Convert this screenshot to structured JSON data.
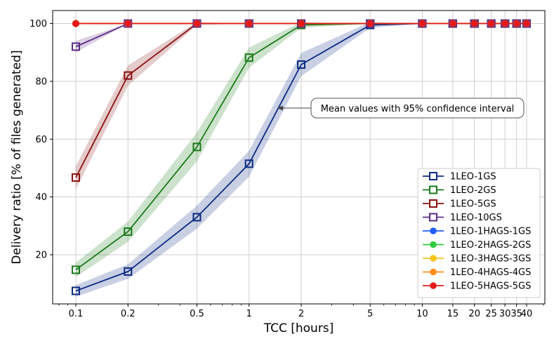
{
  "chart_data": {
    "type": "line",
    "xscale": "log",
    "xlabel": "TCC [hours]",
    "ylabel": "Delivery ratio [% of files generated]",
    "xlim": [
      0.0735,
      51
    ],
    "ylim": [
      3,
      104.5
    ],
    "x_ticks": [
      0.1,
      0.2,
      0.5,
      1,
      2,
      5,
      10,
      15,
      20,
      25,
      30,
      35,
      40
    ],
    "x_tick_labels": [
      "0.1",
      "0.2",
      "0.5",
      "1",
      "2",
      "5",
      "10",
      "15",
      "20",
      "25",
      "30",
      "35",
      "40"
    ],
    "y_ticks": [
      20,
      40,
      60,
      80,
      100
    ],
    "y_tick_labels": [
      "20",
      "40",
      "60",
      "80",
      "100"
    ],
    "grid": true,
    "legend_position": "lower-right",
    "annotation": "Mean values with 95% confidence interval",
    "series": [
      {
        "name": "1LEO-1GS",
        "color": "#0b2a82",
        "marker": "square-open",
        "x": [
          0.1,
          0.2,
          0.5,
          1,
          2,
          5,
          10,
          15,
          20,
          25,
          30,
          35,
          40
        ],
        "y": [
          7.5,
          14.2,
          33,
          51.5,
          85.8,
          99.5,
          100,
          100,
          100,
          100,
          100,
          100,
          100
        ],
        "ci": [
          2,
          2.5,
          4,
          4.5,
          4,
          1,
          0,
          0,
          0,
          0,
          0,
          0,
          0
        ]
      },
      {
        "name": "1LEO-2GS",
        "color": "#1a7a1a",
        "marker": "square-open",
        "x": [
          0.1,
          0.2,
          0.5,
          1,
          2,
          5,
          10,
          15,
          20,
          25,
          30,
          35,
          40
        ],
        "y": [
          14.8,
          28,
          57.3,
          88.2,
          99.5,
          100,
          100,
          100,
          100,
          100,
          100,
          100,
          100
        ],
        "ci": [
          2.5,
          3.5,
          5,
          3.5,
          1,
          0,
          0,
          0,
          0,
          0,
          0,
          0,
          0
        ]
      },
      {
        "name": "1LEO-5GS",
        "color": "#8a1010",
        "marker": "square-open",
        "x": [
          0.1,
          0.2,
          0.5,
          1,
          2,
          5,
          10,
          15,
          20,
          25,
          30,
          35,
          40
        ],
        "y": [
          46.7,
          82,
          100,
          100,
          100,
          100,
          100,
          100,
          100,
          100,
          100,
          100,
          100
        ],
        "ci": [
          4,
          3.5,
          0.5,
          0,
          0,
          0,
          0,
          0,
          0,
          0,
          0,
          0,
          0
        ]
      },
      {
        "name": "1LEO-10GS",
        "color": "#5b2a86",
        "marker": "square-open",
        "x": [
          0.1,
          0.2,
          0.5,
          1,
          2,
          5,
          10,
          15,
          20,
          25,
          30,
          35,
          40
        ],
        "y": [
          92,
          100,
          100,
          100,
          100,
          100,
          100,
          100,
          100,
          100,
          100,
          100,
          100
        ],
        "ci": [
          2,
          0,
          0,
          0,
          0,
          0,
          0,
          0,
          0,
          0,
          0,
          0,
          0
        ]
      },
      {
        "name": "1LEO-1HAGS-1GS",
        "color": "#1f5fff",
        "marker": "circle-filled",
        "x": [
          0.1,
          0.2,
          0.5,
          1,
          2,
          5,
          10,
          15,
          20,
          25,
          30,
          35,
          40
        ],
        "y": [
          100,
          100,
          100,
          100,
          100,
          100,
          100,
          100,
          100,
          100,
          100,
          100,
          100
        ]
      },
      {
        "name": "1LEO-2HAGS-2GS",
        "color": "#2ecc40",
        "marker": "circle-filled",
        "x": [
          0.1,
          0.2,
          0.5,
          1,
          2,
          5,
          10,
          15,
          20,
          25,
          30,
          35,
          40
        ],
        "y": [
          100,
          100,
          100,
          100,
          100,
          100,
          100,
          100,
          100,
          100,
          100,
          100,
          100
        ]
      },
      {
        "name": "1LEO-3HAGS-3GS",
        "color": "#f5c518",
        "marker": "circle-filled",
        "x": [
          0.1,
          0.2,
          0.5,
          1,
          2,
          5,
          10,
          15,
          20,
          25,
          30,
          35,
          40
        ],
        "y": [
          100,
          100,
          100,
          100,
          100,
          100,
          100,
          100,
          100,
          100,
          100,
          100,
          100
        ]
      },
      {
        "name": "1LEO-4HAGS-4GS",
        "color": "#ff8c1a",
        "marker": "circle-filled",
        "x": [
          0.1,
          0.2,
          0.5,
          1,
          2,
          5,
          10,
          15,
          20,
          25,
          30,
          35,
          40
        ],
        "y": [
          100,
          100,
          100,
          100,
          100,
          100,
          100,
          100,
          100,
          100,
          100,
          100,
          100
        ]
      },
      {
        "name": "1LEO-5HAGS-5GS",
        "color": "#e41a1a",
        "marker": "circle-filled",
        "x": [
          0.1,
          0.2,
          0.5,
          1,
          2,
          5,
          10,
          15,
          20,
          25,
          30,
          35,
          40
        ],
        "y": [
          100,
          100,
          100,
          100,
          100,
          100,
          100,
          100,
          100,
          100,
          100,
          100,
          100
        ]
      }
    ]
  }
}
